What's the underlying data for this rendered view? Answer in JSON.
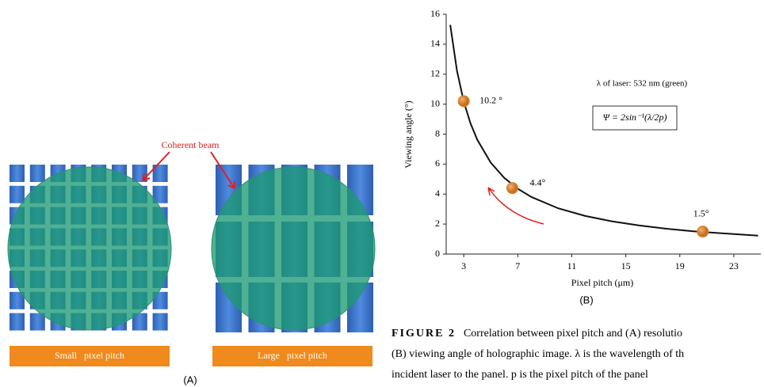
{
  "panel_a": {
    "callout": "Coherent beam",
    "small_label": "Small   pixel pitch",
    "large_label": "Large   pixel pitch",
    "panel_label": "(A)"
  },
  "chart_data": {
    "type": "line",
    "panel_label": "(B)",
    "x_label": "Pixel pitch (μm)",
    "y_label": "Viewing angle (°)",
    "annotations": [
      "λ of laser: 532 nm (green)",
      "Ψ = 2sin⁻¹(λ/2p)"
    ],
    "x": [
      2,
      2.5,
      3,
      3.5,
      4,
      5,
      6,
      7,
      8,
      10,
      12,
      14,
      16,
      18,
      20,
      22,
      24.8
    ],
    "series": [
      {
        "color": "#111111",
        "values": [
          15.29,
          12.22,
          10.17,
          8.72,
          7.63,
          6.1,
          5.08,
          4.36,
          3.81,
          3.05,
          2.54,
          2.18,
          1.91,
          1.69,
          1.52,
          1.39,
          1.23
        ]
      }
    ],
    "points": {
      "color": "#d9822b",
      "x": [
        3,
        6.6,
        20.7
      ],
      "values": [
        10.2,
        4.4,
        1.5
      ],
      "value_labels": [
        "10.2 °",
        "4.4°",
        "1.5°"
      ]
    },
    "xlim": [
      1.7,
      25
    ],
    "ylim": [
      0,
      16
    ],
    "xticks": [
      3,
      7,
      11,
      15,
      19,
      23
    ],
    "yticks": [
      0,
      2,
      4,
      6,
      8,
      10,
      12,
      14,
      16
    ]
  },
  "caption": {
    "label": "FIGURE 2",
    "lines": [
      "Correlation between pixel pitch and (A) resolutio",
      "(B) viewing angle of holographic image. λ is the wavelength of th",
      "incident laser to the panel. p is the pixel pitch of the panel"
    ]
  }
}
